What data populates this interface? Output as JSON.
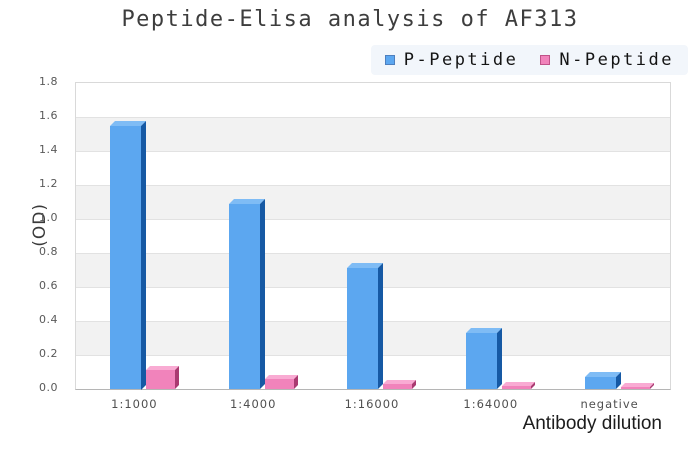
{
  "title": "Peptide-Elisa analysis of AF313",
  "chart_data": {
    "type": "bar",
    "title": "Peptide-Elisa analysis of AF313",
    "categories": [
      "1:1000",
      "1:4000",
      "1:16000",
      "1:64000",
      "negative"
    ],
    "series": [
      {
        "name": "P-Peptide",
        "values": [
          1.55,
          1.09,
          0.71,
          0.33,
          0.07
        ],
        "color": "#5ca7f0",
        "side_color": "#1659a4",
        "top_color": "#7fbcf5",
        "marker_border": "#4e7fbe"
      },
      {
        "name": "N-Peptide",
        "values": [
          0.11,
          0.06,
          0.03,
          0.02,
          0.01
        ],
        "color": "#f183bb",
        "side_color": "#aa3a71",
        "top_color": "#f9abd3",
        "marker_border": "#c05389"
      }
    ],
    "xlabel": "Antibody dilution",
    "ylabel": "(OD)",
    "ylim": [
      0,
      1.8
    ],
    "ytick_step": 0.2,
    "y_tick_labels": [
      "0.0",
      "0.2",
      "0.4",
      "0.6",
      "0.8",
      "1.0",
      "1.2",
      "1.4",
      "1.6",
      "1.8"
    ],
    "grid": "horizontal-bands",
    "band_colors": [
      "#ffffff",
      "#f2f2f2"
    ],
    "legend_position": "top-right",
    "style": "3d-extruded-bars"
  }
}
